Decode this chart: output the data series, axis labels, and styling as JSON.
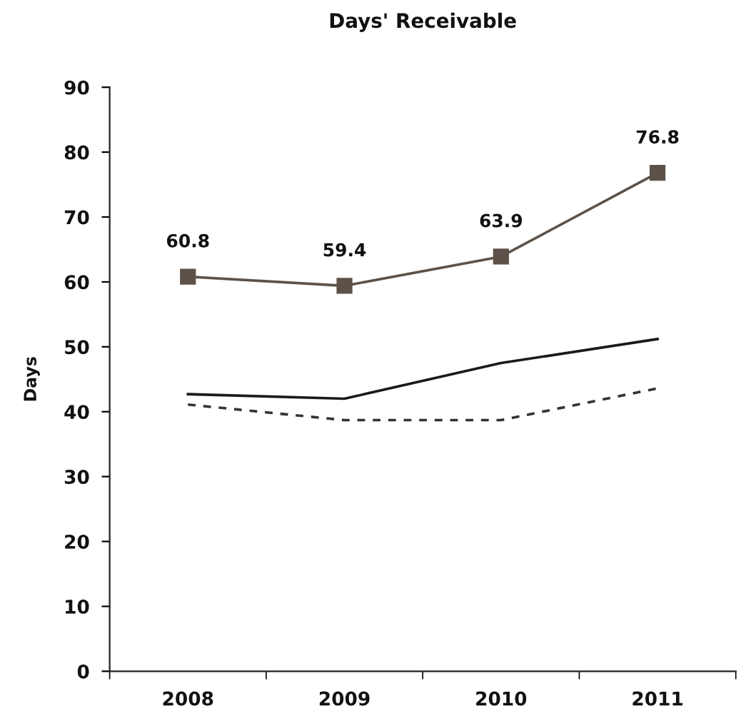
{
  "chart_data": {
    "type": "line",
    "title": "Days' Receivable",
    "ylabel": "Days",
    "categories": [
      "2008",
      "2009",
      "2010",
      "2011"
    ],
    "series": [
      {
        "color": "#5c5249",
        "values": [
          60.8,
          59.4,
          63.9,
          76.8
        ],
        "marker": "square",
        "line_style": "solid",
        "value_labels": [
          "60.8",
          "59.4",
          "63.9",
          "76.8"
        ]
      },
      {
        "color": "#1a1a1a",
        "values": [
          42.7,
          42.0,
          47.5,
          51.2
        ],
        "line_style": "solid"
      },
      {
        "color": "#333333",
        "values": [
          41.1,
          38.7,
          38.7,
          43.6
        ],
        "line_style": "dashed"
      }
    ],
    "ylim": [
      0,
      90
    ],
    "yticks": [
      0,
      10,
      20,
      30,
      40,
      50,
      60,
      70,
      80,
      90
    ]
  }
}
